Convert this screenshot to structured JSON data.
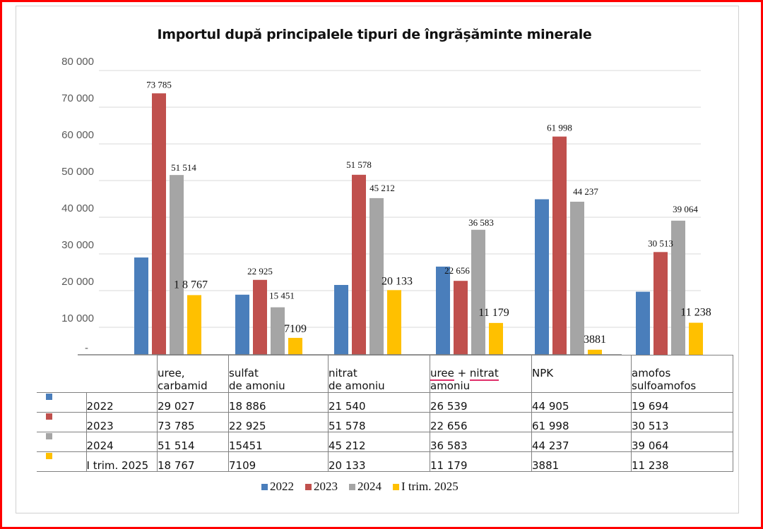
{
  "chart_data": {
    "type": "bar",
    "title": "Importul după principalele tipuri de îngrășăminte minerale",
    "xlabel": "",
    "ylabel": "",
    "ylim": [
      0,
      80000
    ],
    "grid": true,
    "legend_position": "bottom",
    "yticks": [
      "10 000",
      "20 000",
      "30 000",
      "40 000",
      "50 000",
      "60 000",
      "70 000",
      "80 000"
    ],
    "ytick_values": [
      10000,
      20000,
      30000,
      40000,
      50000,
      60000,
      70000,
      80000
    ],
    "axis_marker": "-",
    "categories": [
      {
        "line1": "uree,",
        "line2": "carbamid"
      },
      {
        "line1": "sulfat",
        "line2": "de amoniu"
      },
      {
        "line1": "nitrat",
        "line2": "de amoniu"
      },
      {
        "line1": "uree + nitrat",
        "line2": "amoniu"
      },
      {
        "line1": "NPK",
        "line2": ""
      },
      {
        "line1": "amofos",
        "line2": "sulfoamofos"
      }
    ],
    "series": [
      {
        "name": "2022",
        "color": "#4a7ebb",
        "values": [
          29027,
          18886,
          21540,
          26539,
          44905,
          19694
        ],
        "table_values": [
          "29 027",
          "18 886",
          "21 540",
          "26 539",
          "44 905",
          "19 694"
        ],
        "data_labels": [
          "",
          "",
          "",
          "",
          "",
          ""
        ]
      },
      {
        "name": "2023",
        "color": "#c0504d",
        "values": [
          73785,
          22925,
          51578,
          22656,
          61998,
          30513
        ],
        "table_values": [
          "73 785",
          "22 925",
          "51 578",
          "22 656",
          "61 998",
          "30 513"
        ],
        "data_labels": [
          "73 785",
          "22 925",
          "51 578",
          "22 656",
          "61 998",
          "30 513"
        ]
      },
      {
        "name": "2024",
        "color": "#a5a5a5",
        "values": [
          51514,
          15451,
          45212,
          36583,
          44237,
          39064
        ],
        "table_values": [
          "51 514",
          "15451",
          "45 212",
          "36 583",
          "44 237",
          "39 064"
        ],
        "data_labels": [
          "51 514",
          "15 451",
          "45 212",
          "36 583",
          "44 237",
          "39 064"
        ]
      },
      {
        "name": "I trim. 2025",
        "color": "#ffc000",
        "values": [
          18767,
          7109,
          20133,
          11179,
          3881,
          11238
        ],
        "table_values": [
          "18 767",
          "7109",
          "20 133",
          "11 179",
          "3881",
          "11 238"
        ],
        "data_labels": [
          "1 8 767",
          "7109",
          "20 133",
          "11 179",
          "3881",
          "11 238"
        ]
      }
    ]
  }
}
